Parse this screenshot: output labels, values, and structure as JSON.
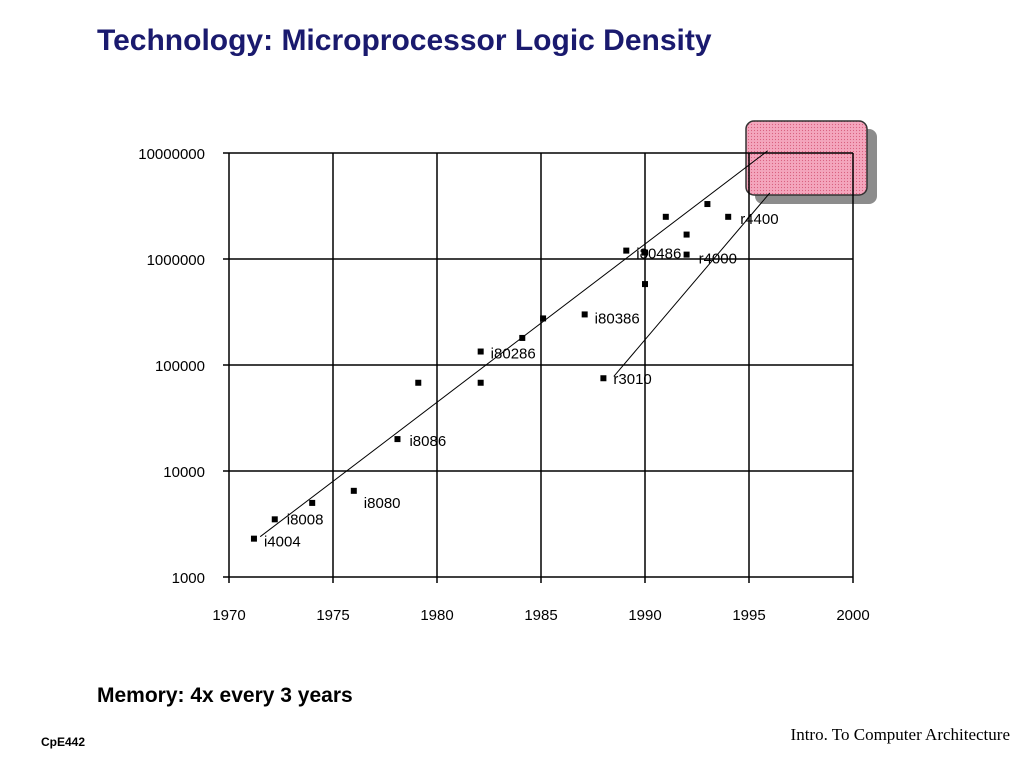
{
  "slide": {
    "title": "Technology: Microprocessor Logic Density",
    "memory_note": "Memory: 4x every 3 years",
    "course_code": "CpE442",
    "course_name": "Intro. To Computer Architecture"
  },
  "colors": {
    "title": "#1a1a6e",
    "highlight_fill": "#f4a6bd",
    "highlight_border": "#333333",
    "highlight_shadow": "#8c8c8c"
  },
  "chart_data": {
    "type": "scatter",
    "title": "",
    "xlabel": "",
    "ylabel": "",
    "xlim": [
      1970,
      2000
    ],
    "ylim": [
      1000,
      10000000
    ],
    "y_scale": "log",
    "grid": true,
    "x_ticks": [
      "1970",
      "1975",
      "1980",
      "1985",
      "1990",
      "1995",
      "2000"
    ],
    "y_ticks": [
      "1000",
      "10000",
      "100000",
      "1000000",
      "10000000"
    ],
    "points": [
      {
        "x": 1971.2,
        "y": 2300,
        "label": "i4004"
      },
      {
        "x": 1972.2,
        "y": 3500,
        "label": "i8008"
      },
      {
        "x": 1974.0,
        "y": 5000,
        "label": ""
      },
      {
        "x": 1976.0,
        "y": 6500,
        "label": "i8080"
      },
      {
        "x": 1978.1,
        "y": 20000,
        "label": "i8086"
      },
      {
        "x": 1979.1,
        "y": 68000,
        "label": ""
      },
      {
        "x": 1982.1,
        "y": 68000,
        "label": ""
      },
      {
        "x": 1982.1,
        "y": 134000,
        "label": "i80286"
      },
      {
        "x": 1984.1,
        "y": 180000,
        "label": ""
      },
      {
        "x": 1985.1,
        "y": 275000,
        "label": ""
      },
      {
        "x": 1987.1,
        "y": 300000,
        "label": "i80386"
      },
      {
        "x": 1988.0,
        "y": 75000,
        "label": "r3010"
      },
      {
        "x": 1989.1,
        "y": 1200000,
        "label": "i80486"
      },
      {
        "x": 1990.0,
        "y": 580000,
        "label": ""
      },
      {
        "x": 1990.0,
        "y": 1150000,
        "label": ""
      },
      {
        "x": 1991.0,
        "y": 2500000,
        "label": ""
      },
      {
        "x": 1992.0,
        "y": 1700000,
        "label": ""
      },
      {
        "x": 1992.0,
        "y": 1100000,
        "label": "r4000"
      },
      {
        "x": 1993.0,
        "y": 3300000,
        "label": ""
      },
      {
        "x": 1994.0,
        "y": 2500000,
        "label": "r4400"
      }
    ],
    "trend_lines": [
      {
        "from": [
          1971.5,
          2400
        ],
        "to": [
          1995.9,
          10500000
        ]
      },
      {
        "from": [
          1988.5,
          78000
        ],
        "to": [
          1996.0,
          4200000
        ]
      }
    ]
  }
}
